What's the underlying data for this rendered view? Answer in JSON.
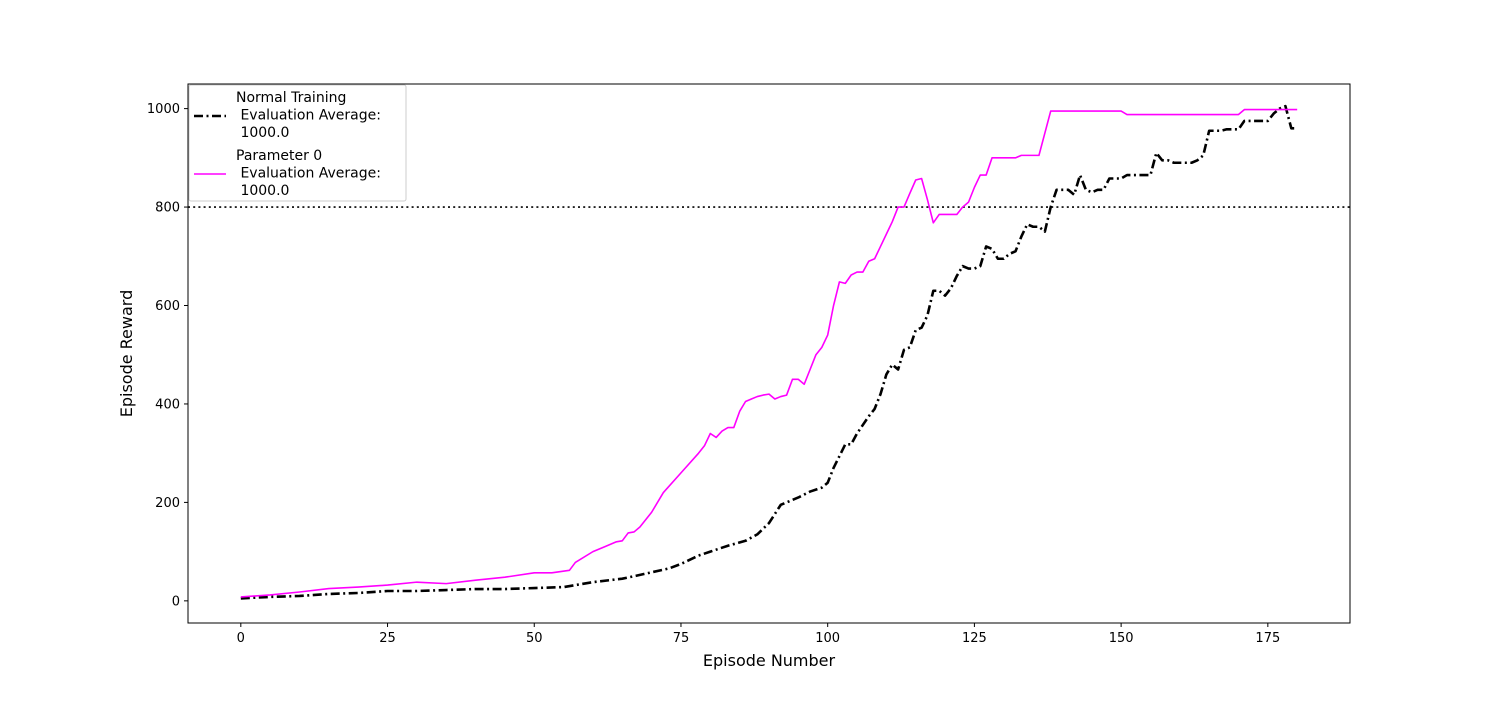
{
  "chart_data": {
    "type": "line",
    "xlabel": "Episode Number",
    "ylabel": "Episode Reward",
    "xlim": [
      -9,
      189
    ],
    "ylim": [
      -45,
      1050
    ],
    "xticks": [
      0,
      25,
      50,
      75,
      100,
      125,
      150,
      175
    ],
    "yticks": [
      0,
      200,
      400,
      600,
      800,
      1000
    ],
    "grid": false,
    "legend_position": "top-left",
    "reference_line": {
      "y": 800,
      "style": "dotted",
      "color": "#000000"
    },
    "series": [
      {
        "name": "Normal Training\n Evaluation Average:\n 1000.0",
        "color": "#000000",
        "style": "dashdot",
        "x": [
          0,
          5,
          10,
          15,
          20,
          25,
          30,
          35,
          40,
          45,
          50,
          55,
          60,
          65,
          67,
          70,
          73,
          75,
          78,
          80,
          83,
          86,
          88,
          90,
          92,
          95,
          97,
          99,
          100,
          101,
          103,
          104,
          105,
          107,
          108,
          109,
          110,
          111,
          112,
          113,
          114,
          115,
          116,
          117,
          118,
          119,
          120,
          121,
          122,
          123,
          124,
          125,
          126,
          127,
          128,
          129,
          130,
          131,
          132,
          133,
          134,
          135,
          136,
          137,
          138,
          139,
          140,
          141,
          142,
          143,
          144,
          145,
          146,
          147,
          148,
          149,
          150,
          151,
          152,
          153,
          154,
          155,
          156,
          157,
          158,
          159,
          160,
          161,
          162,
          163,
          164,
          165,
          166,
          167,
          168,
          169,
          170,
          171,
          172,
          173,
          174,
          175,
          176,
          177,
          178,
          179,
          180
        ],
        "y": [
          5,
          8,
          10,
          14,
          16,
          20,
          20,
          22,
          24,
          24,
          26,
          28,
          38,
          45,
          50,
          58,
          66,
          75,
          92,
          100,
          112,
          122,
          135,
          158,
          195,
          210,
          222,
          230,
          240,
          270,
          318,
          318,
          340,
          375,
          390,
          420,
          460,
          480,
          470,
          510,
          515,
          550,
          555,
          580,
          630,
          630,
          620,
          635,
          660,
          680,
          675,
          675,
          680,
          720,
          715,
          695,
          695,
          705,
          710,
          740,
          765,
          760,
          760,
          750,
          800,
          835,
          835,
          835,
          825,
          865,
          835,
          830,
          835,
          835,
          858,
          858,
          858,
          865,
          865,
          865,
          865,
          865,
          910,
          895,
          895,
          890,
          890,
          890,
          890,
          895,
          905,
          955,
          955,
          955,
          958,
          958,
          958,
          975,
          975,
          975,
          975,
          975,
          990,
          1000,
          1005,
          960,
          960
        ]
      },
      {
        "name": "Parameter 0\n Evaluation Average:\n 1000.0",
        "color": "#ff00ff",
        "style": "solid",
        "x": [
          0,
          5,
          10,
          15,
          20,
          25,
          30,
          35,
          40,
          45,
          50,
          53,
          56,
          57,
          60,
          62,
          64,
          65,
          66,
          67,
          68,
          70,
          72,
          75,
          78,
          79,
          80,
          81,
          82,
          83,
          84,
          85,
          86,
          87,
          88,
          89,
          90,
          91,
          92,
          93,
          94,
          95,
          96,
          97,
          98,
          99,
          100,
          101,
          102,
          103,
          104,
          105,
          106,
          107,
          108,
          109,
          110,
          111,
          112,
          113,
          114,
          115,
          116,
          117,
          118,
          119,
          120,
          121,
          122,
          123,
          124,
          125,
          126,
          127,
          128,
          129,
          130,
          131,
          132,
          133,
          134,
          135,
          136,
          137,
          138,
          139,
          140,
          145,
          150,
          151,
          152,
          155,
          160,
          165,
          170,
          171,
          172,
          175,
          180
        ],
        "y": [
          8,
          12,
          18,
          25,
          28,
          32,
          38,
          35,
          42,
          48,
          57,
          57,
          62,
          78,
          100,
          110,
          120,
          122,
          138,
          140,
          150,
          180,
          220,
          260,
          300,
          315,
          340,
          332,
          345,
          352,
          352,
          385,
          405,
          410,
          415,
          418,
          420,
          410,
          415,
          418,
          450,
          450,
          440,
          470,
          500,
          515,
          540,
          600,
          648,
          645,
          662,
          668,
          668,
          690,
          695,
          720,
          745,
          770,
          800,
          800,
          828,
          855,
          858,
          815,
          768,
          785,
          785,
          785,
          785,
          800,
          810,
          840,
          865,
          865,
          900,
          900,
          900,
          900,
          900,
          905,
          905,
          905,
          905,
          950,
          995,
          995,
          995,
          995,
          995,
          988,
          988,
          988,
          988,
          988,
          988,
          998,
          998,
          998,
          998
        ]
      }
    ]
  }
}
